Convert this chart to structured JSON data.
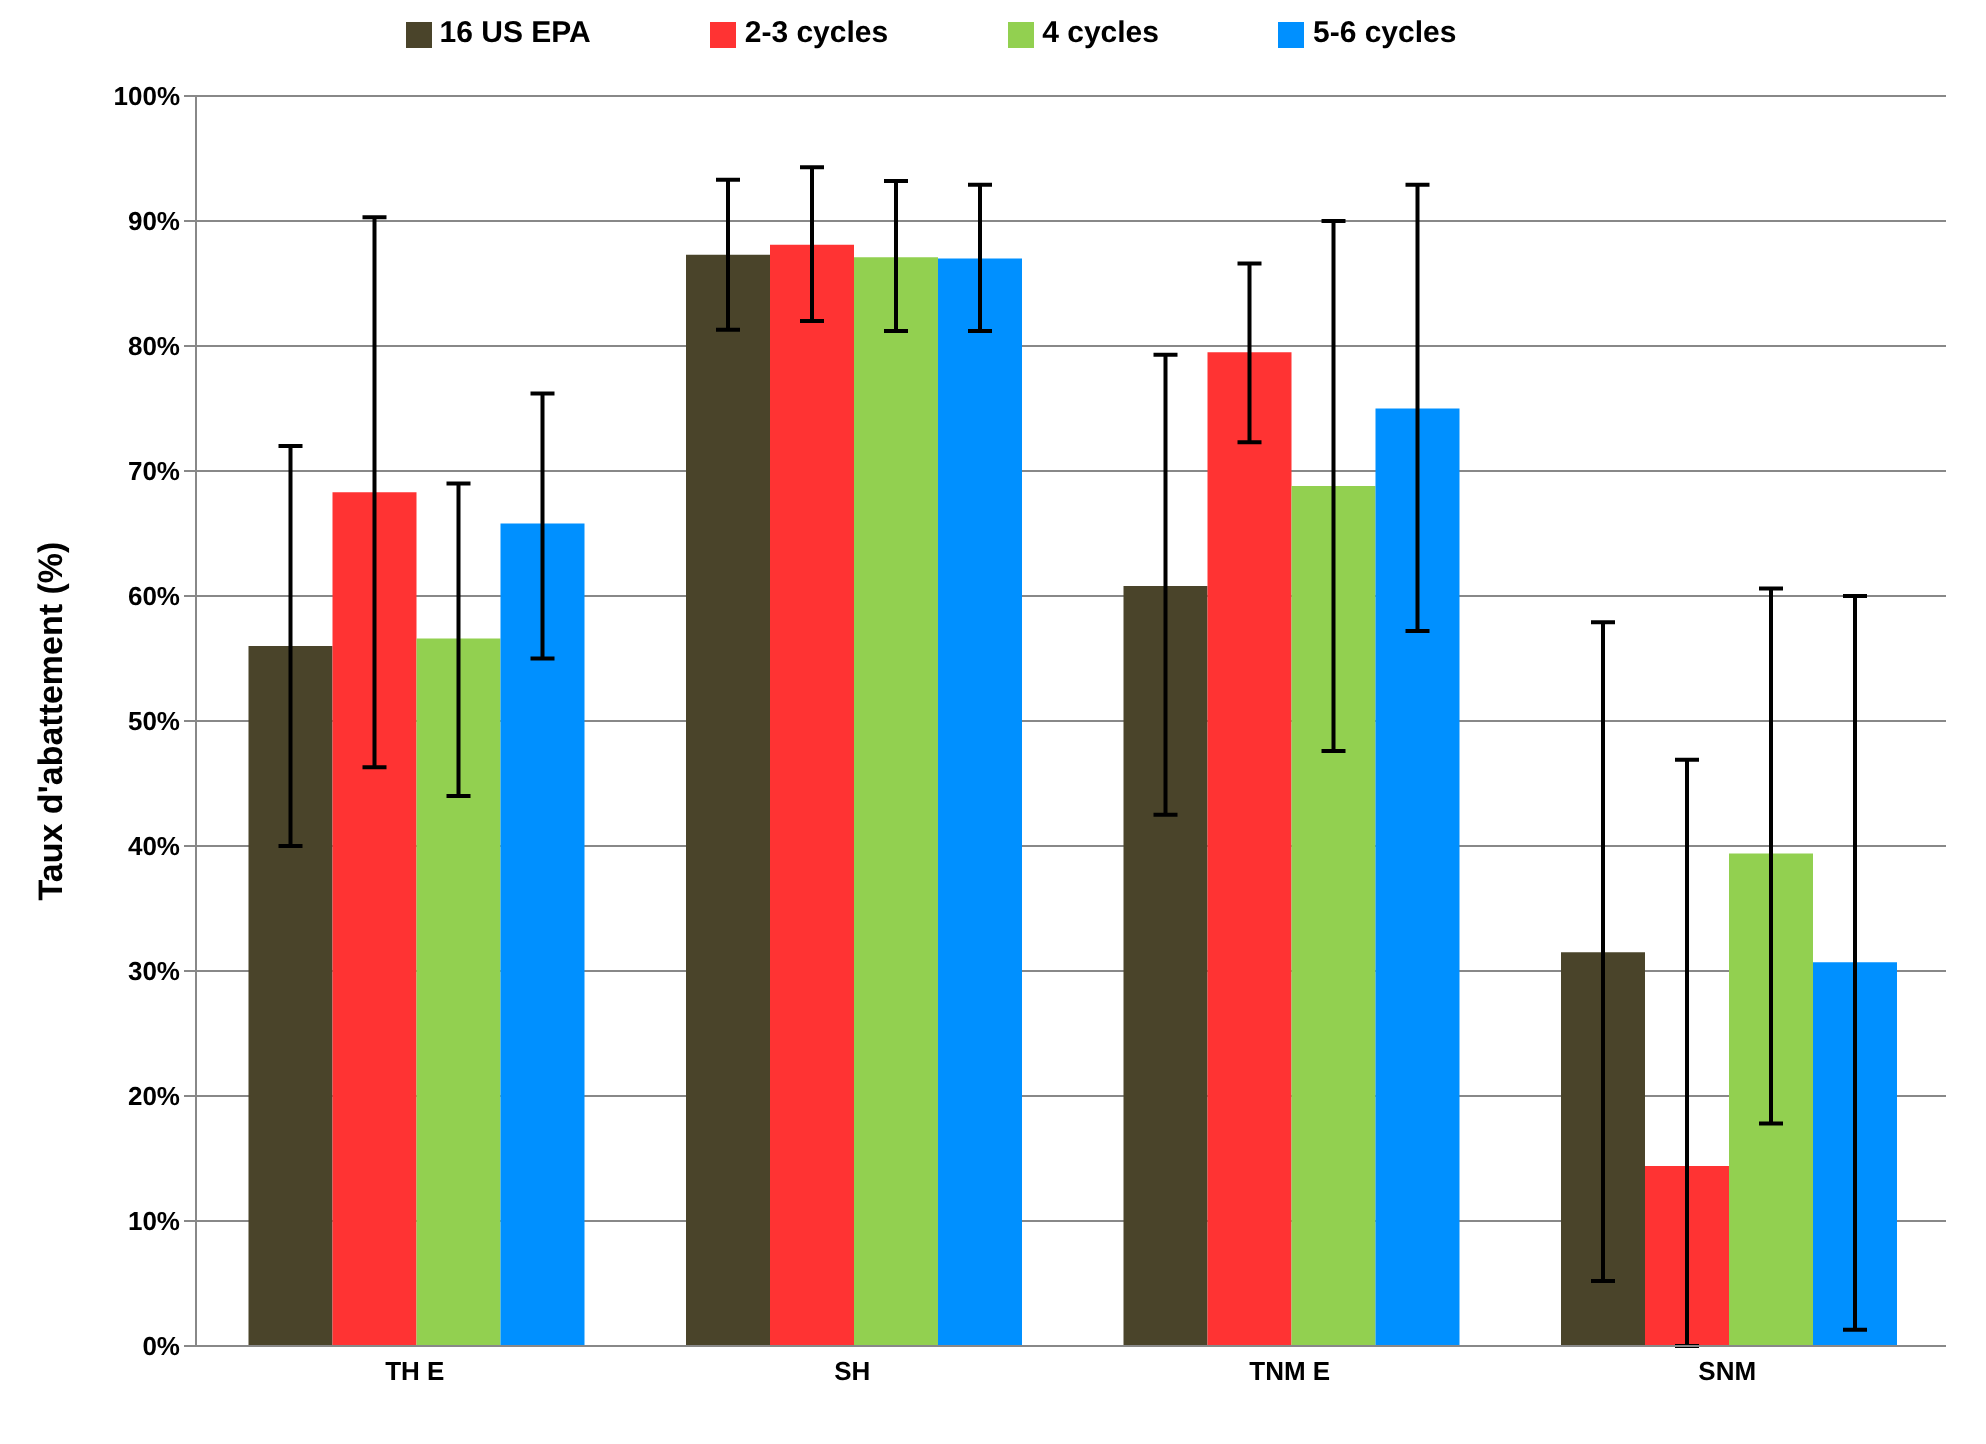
{
  "chart_data": {
    "type": "bar",
    "ylabel": "Taux d'abattement (%)",
    "categories": [
      "TH E",
      "SH",
      "TNM E",
      "SNM"
    ],
    "series": [
      {
        "name": "16 US EPA",
        "color": "#4a442a",
        "values": [
          56,
          87.3,
          60.8,
          31.5
        ],
        "errors": [
          [
            40,
            72
          ],
          [
            81.3,
            93.3
          ],
          [
            42.5,
            79.3
          ],
          [
            5.2,
            57.9
          ]
        ]
      },
      {
        "name": "2-3 cycles",
        "color": "#ff3333",
        "values": [
          68.3,
          88.1,
          79.5,
          14.4
        ],
        "errors": [
          [
            46.3,
            90.3
          ],
          [
            82,
            94.3
          ],
          [
            72.3,
            86.6
          ],
          [
            0,
            46.9
          ]
        ]
      },
      {
        "name": "4 cycles",
        "color": "#92d050",
        "values": [
          56.6,
          87.1,
          68.8,
          39.4
        ],
        "errors": [
          [
            44,
            69
          ],
          [
            81.2,
            93.2
          ],
          [
            47.6,
            90
          ],
          [
            17.8,
            60.6
          ]
        ]
      },
      {
        "name": "5-6 cycles",
        "color": "#0090ff",
        "values": [
          65.8,
          87,
          75,
          30.7
        ],
        "errors": [
          [
            55,
            76.2
          ],
          [
            81.2,
            92.9
          ],
          [
            57.2,
            92.9
          ],
          [
            1.3,
            60
          ]
        ]
      }
    ],
    "ylim": [
      0,
      100
    ],
    "yticks": [
      {
        "value": 0,
        "label": "0%"
      },
      {
        "value": 10,
        "label": "10%"
      },
      {
        "value": 20,
        "label": "20%"
      },
      {
        "value": 30,
        "label": "30%"
      },
      {
        "value": 40,
        "label": "40%"
      },
      {
        "value": 50,
        "label": "50%"
      },
      {
        "value": 60,
        "label": "60%"
      },
      {
        "value": 70,
        "label": "70%"
      },
      {
        "value": 80,
        "label": "80%"
      },
      {
        "value": 90,
        "label": "90%"
      },
      {
        "value": 100,
        "label": "100%"
      }
    ],
    "grid": "y",
    "legend": "top"
  }
}
